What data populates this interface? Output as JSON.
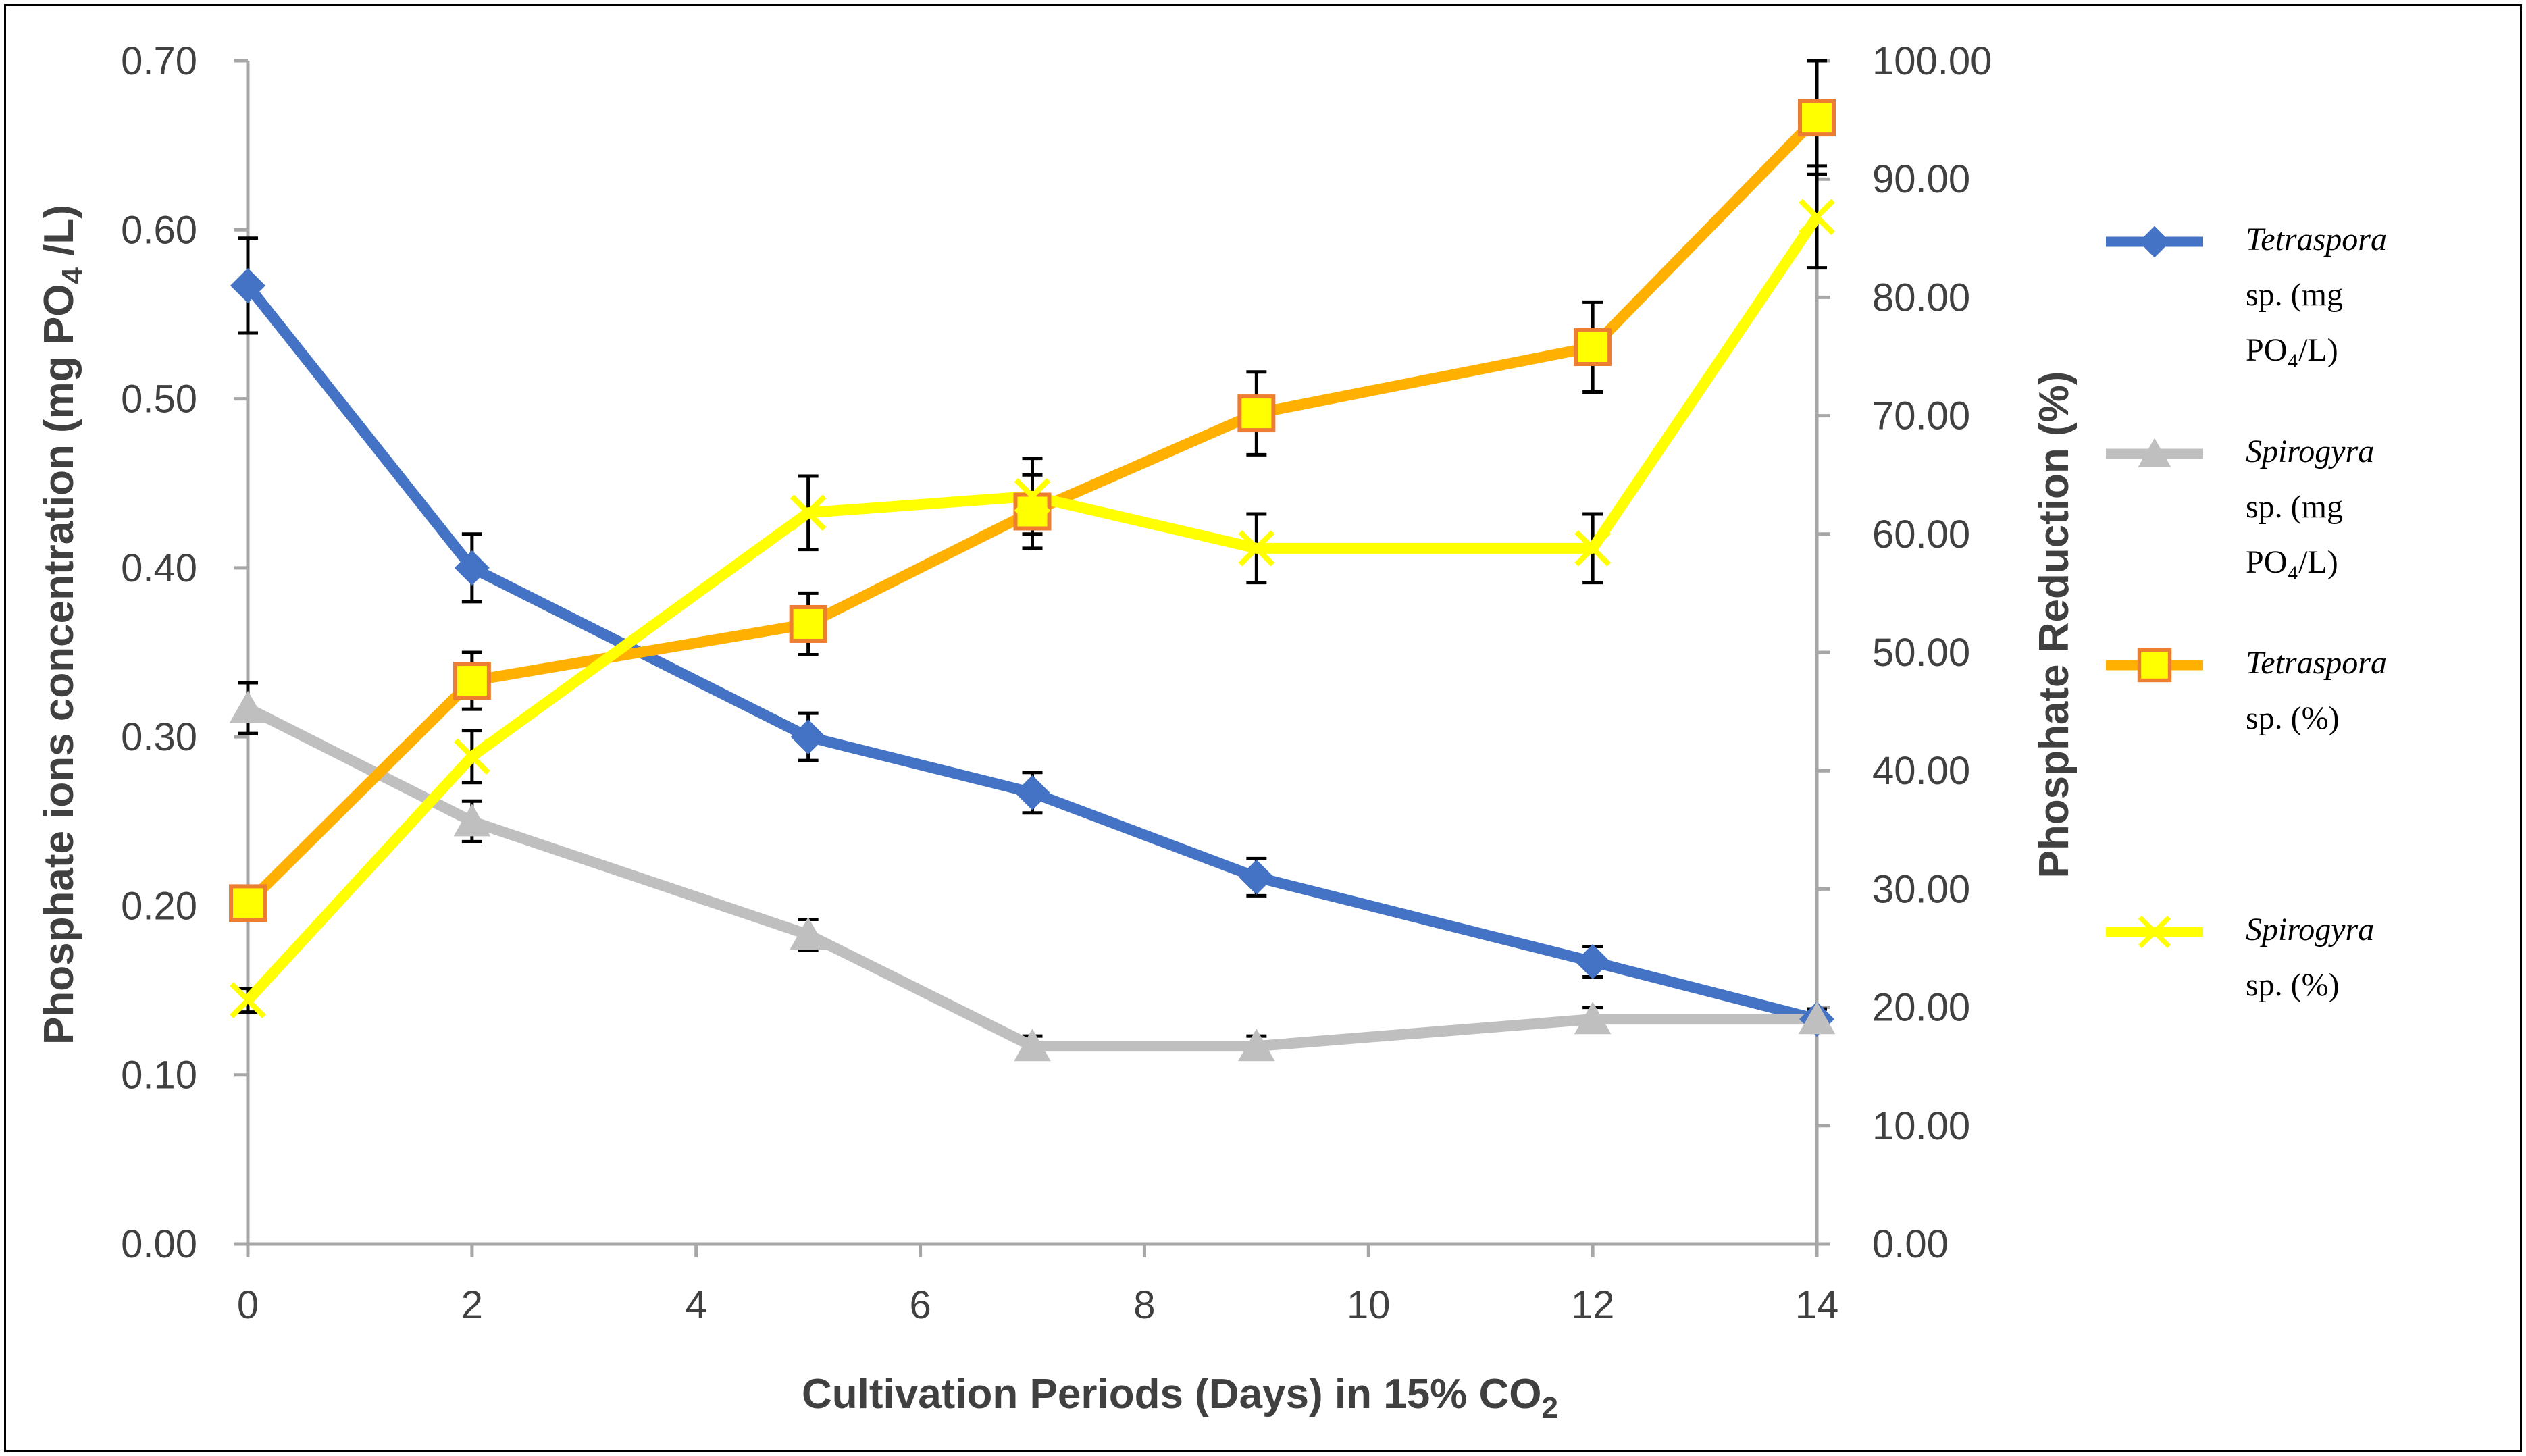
{
  "chart_data": {
    "type": "line",
    "xlabel_main": "Cultivation Periods (Days) in 15% CO",
    "xlabel_sub": "2",
    "ylabel_left_main": "Phosphate ions concentration (mg PO",
    "ylabel_left_sub": "4",
    "ylabel_left_end": " /L)",
    "ylabel_right": "Phosphate Reduction (%)",
    "xlim": [
      0,
      14
    ],
    "ylim_left": [
      0,
      0.7
    ],
    "ylim_right": [
      0,
      100
    ],
    "x_ticks": [
      "0",
      "2",
      "4",
      "6",
      "8",
      "10",
      "12",
      "14"
    ],
    "y_left_ticks": [
      "0.00",
      "0.10",
      "0.20",
      "0.30",
      "0.40",
      "0.50",
      "0.60",
      "0.70"
    ],
    "y_right_ticks": [
      "0.00",
      "10.00",
      "20.00",
      "30.00",
      "40.00",
      "50.00",
      "60.00",
      "70.00",
      "80.00",
      "90.00",
      "100.00"
    ],
    "legend_position": "right",
    "series": [
      {
        "key": "tetra_conc",
        "legend_italic": "Tetraspora",
        "legend_line2": "sp. (mg",
        "legend_line3": "PO₄/L)",
        "axis": "left",
        "marker": "diamond",
        "color": "#4472C4",
        "x": [
          0,
          2,
          5,
          7,
          9,
          12,
          14
        ],
        "y": [
          0.567,
          0.4,
          0.3,
          0.267,
          0.217,
          0.167,
          0.133
        ],
        "error": [
          0.028,
          0.02,
          0.014,
          0.012,
          0.011,
          0.009,
          0.006
        ]
      },
      {
        "key": "spiro_conc",
        "legend_italic": "Spirogyra",
        "legend_line2": "sp. (mg",
        "legend_line3": "PO₄/L)",
        "axis": "left",
        "marker": "triangle",
        "color": "#BFBFBF",
        "x": [
          0,
          2,
          5,
          7,
          9,
          12,
          14
        ],
        "y": [
          0.317,
          0.25,
          0.183,
          0.117,
          0.117,
          0.133,
          0.133
        ],
        "error": [
          0.015,
          0.012,
          0.009,
          0.006,
          0.006,
          0.007,
          0.006
        ]
      },
      {
        "key": "tetra_pct",
        "legend_italic": "Tetraspora",
        "legend_line2": "sp. (%)",
        "legend_line3": "",
        "axis": "right",
        "marker": "square",
        "color": "#FFB000",
        "marker_edge": "#ED7D31",
        "marker_fill": "#FFFF00",
        "x": [
          0,
          2,
          5,
          7,
          9,
          12,
          14
        ],
        "y": [
          28.8,
          47.6,
          52.4,
          61.9,
          70.2,
          75.8,
          95.2
        ],
        "error": [
          1.4,
          2.4,
          2.6,
          3.1,
          3.5,
          3.8,
          4.8
        ]
      },
      {
        "key": "spiro_pct",
        "legend_italic": "Spirogyra",
        "legend_line2": "sp. (%)",
        "legend_line3": "",
        "axis": "right",
        "marker": "x",
        "color": "#FFFF00",
        "x": [
          0,
          2,
          5,
          7,
          9,
          12,
          14
        ],
        "y": [
          20.6,
          41.2,
          61.8,
          63.2,
          58.8,
          58.8,
          86.8
        ],
        "error": [
          1.0,
          2.2,
          3.1,
          3.2,
          2.9,
          2.9,
          4.3
        ]
      }
    ]
  }
}
